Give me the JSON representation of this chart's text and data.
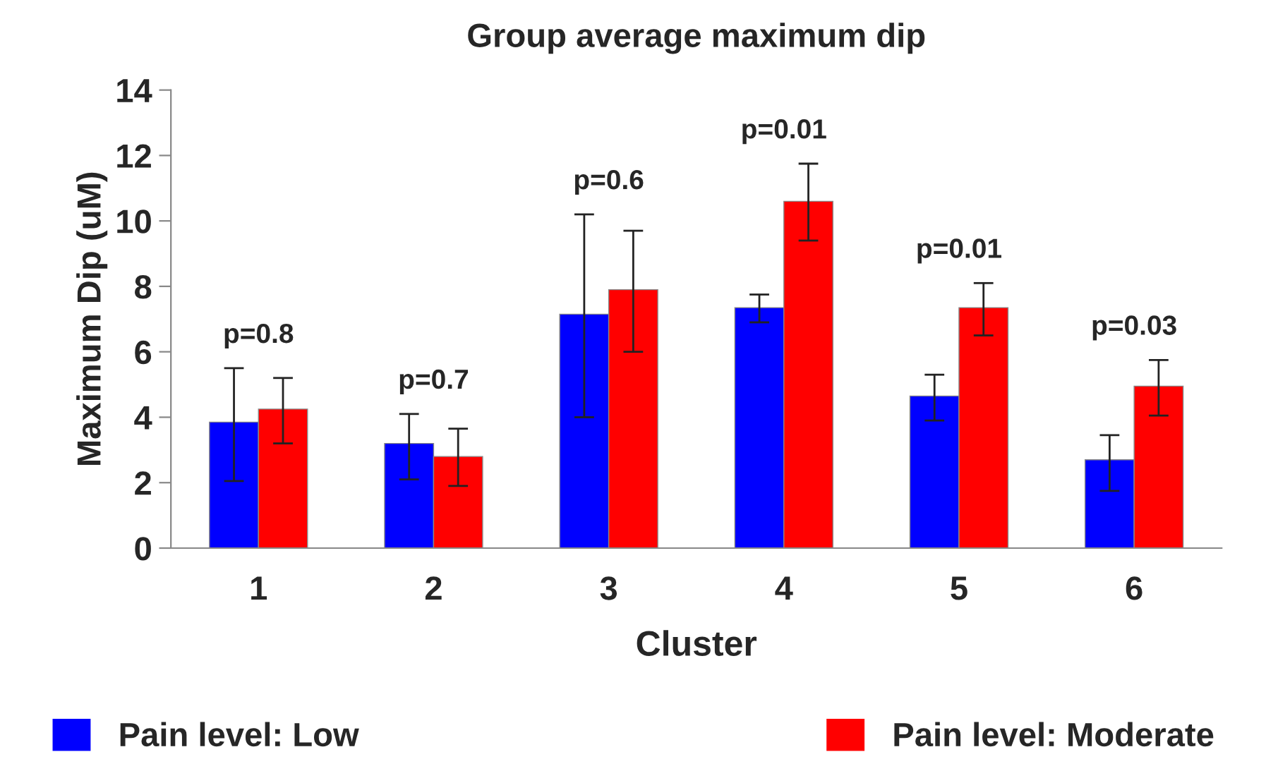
{
  "chart_data": {
    "type": "bar",
    "title": "Group average maximum dip",
    "xlabel": "Cluster",
    "ylabel": "Maximum Dip (uM)",
    "categories": [
      "1",
      "2",
      "3",
      "4",
      "5",
      "6"
    ],
    "series": [
      {
        "name": "Pain level: Low",
        "color": "#0000ff",
        "values": [
          3.85,
          3.2,
          7.15,
          7.35,
          4.65,
          2.7
        ],
        "errors": [
          [
            2.05,
            5.5
          ],
          [
            2.1,
            4.1
          ],
          [
            4.0,
            10.2
          ],
          [
            6.9,
            7.75
          ],
          [
            3.9,
            5.3
          ],
          [
            1.75,
            3.45
          ]
        ]
      },
      {
        "name": "Pain level: Moderate",
        "color": "#ff0000",
        "values": [
          4.25,
          2.8,
          7.9,
          10.6,
          7.35,
          4.95
        ],
        "errors": [
          [
            3.2,
            5.2
          ],
          [
            1.9,
            3.65
          ],
          [
            6.0,
            9.7
          ],
          [
            9.4,
            11.75
          ],
          [
            6.5,
            8.1
          ],
          [
            4.05,
            5.75
          ]
        ]
      }
    ],
    "ylim": [
      0,
      14
    ],
    "yticks": [
      0,
      2,
      4,
      6,
      8,
      10,
      12,
      14
    ],
    "grid": false,
    "legend": "bottom",
    "annotations": [
      "p=0.8",
      "p=0.7",
      "p=0.6",
      "p=0.01",
      "p=0.01",
      "p=0.03"
    ]
  }
}
